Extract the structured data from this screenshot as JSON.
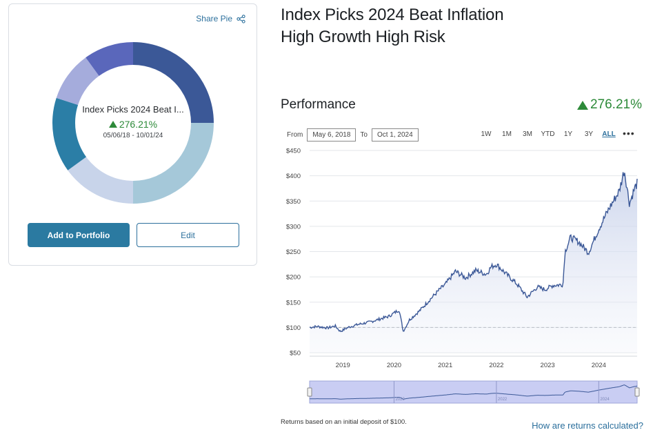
{
  "card": {
    "share_label": "Share Pie",
    "center_name": "Index Picks 2024 Beat I...",
    "center_return": "276.21%",
    "center_dates": "05/06/18 - 10/01/24",
    "add_button": "Add to Portfolio",
    "edit_button": "Edit",
    "slices": [
      {
        "color": "#3b5897",
        "share": 0.25
      },
      {
        "color": "#a5c8d9",
        "share": 0.25
      },
      {
        "color": "#c8d4ea",
        "share": 0.15
      },
      {
        "color": "#2b7ea6",
        "share": 0.15
      },
      {
        "color": "#a5acdc",
        "share": 0.1
      },
      {
        "color": "#5a67bb",
        "share": 0.1
      }
    ]
  },
  "pie_title": "Index Picks 2024 Beat Inflation High Growth High Risk",
  "performance": {
    "title": "Performance",
    "value": "276.21%"
  },
  "range": {
    "from_label": "From",
    "from_value": "May 6, 2018",
    "to_label": "To",
    "to_value": "Oct 1, 2024",
    "periods": [
      "1W",
      "1M",
      "3M",
      "YTD",
      "1Y",
      "3Y",
      "ALL"
    ],
    "active_period": "ALL",
    "more": "•••"
  },
  "chart_data": {
    "type": "area",
    "ylim": [
      50,
      450
    ],
    "y_ticks": [
      "$450",
      "$400",
      "$350",
      "$300",
      "$250",
      "$200",
      "$150",
      "$100",
      "$50"
    ],
    "x_ticks": [
      "2019",
      "2020",
      "2021",
      "2022",
      "2023",
      "2024"
    ],
    "navigator_labels": [
      "2020",
      "2022",
      "2024"
    ],
    "baseline": 100,
    "line_color": "#3b5897",
    "x": [
      2018.35,
      2018.5,
      2018.7,
      2018.85,
      2018.95,
      2019.1,
      2019.3,
      2019.5,
      2019.7,
      2019.9,
      2020.1,
      2020.18,
      2020.3,
      2020.5,
      2020.7,
      2020.9,
      2021.0,
      2021.2,
      2021.4,
      2021.6,
      2021.8,
      2021.9,
      2022.0,
      2022.2,
      2022.4,
      2022.6,
      2022.8,
      2022.95,
      2023.1,
      2023.3,
      2023.34,
      2023.45,
      2023.6,
      2023.8,
      2024.0,
      2024.2,
      2024.4,
      2024.5,
      2024.6,
      2024.7,
      2024.75
    ],
    "y": [
      100,
      102,
      99,
      103,
      92,
      100,
      106,
      110,
      116,
      122,
      135,
      92,
      115,
      133,
      155,
      176,
      185,
      211,
      198,
      213,
      205,
      220,
      225,
      205,
      186,
      160,
      180,
      175,
      183,
      185,
      250,
      278,
      270,
      248,
      295,
      335,
      370,
      412,
      345,
      375,
      385
    ]
  },
  "footnote": "Returns based on an initial deposit of $100.",
  "how_link": "How are returns calculated?"
}
